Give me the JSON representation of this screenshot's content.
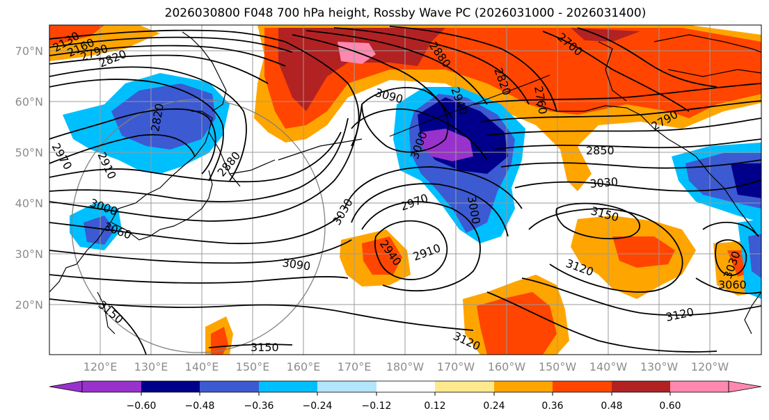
{
  "title": "2026030800 F048 700 hPa height, Rossby Wave PC (2026031000 - 2026031400)",
  "lat_labels": [
    "70°N",
    "60°N",
    "50°N",
    "40°N",
    "30°N",
    "20°N"
  ],
  "lon_labels": [
    "120°E",
    "130°E",
    "140°E",
    "150°E",
    "160°E",
    "170°E",
    "180°W",
    "170°W",
    "160°W",
    "150°W",
    "140°W",
    "130°W",
    "120°W"
  ],
  "colorbar": {
    "ticks": [
      "−0.60",
      "−0.48",
      "−0.36",
      "−0.24",
      "−0.12",
      "0.12",
      "0.24",
      "0.36",
      "0.48",
      "0.60"
    ],
    "colors": [
      "#9932cc",
      "#00008b",
      "#3c5ad2",
      "#00bfff",
      "#b3e5fc",
      "#ffffff",
      "#ffe98c",
      "#ffa500",
      "#ff4500",
      "#b22222",
      "#ff88b0"
    ]
  },
  "contour_labels": [
    "2130",
    "2160",
    "2790",
    "2820",
    "2820",
    "2970",
    "2910",
    "3000",
    "3060",
    "2880",
    "3090",
    "3030",
    "2970",
    "2940",
    "2910",
    "3000",
    "3090",
    "3150",
    "3150",
    "3120",
    "3150",
    "3120",
    "3120",
    "2850",
    "3030",
    "2880",
    "2820",
    "2700",
    "2760",
    "2790",
    "2940",
    "3000",
    "3060",
    "3030"
  ]
}
